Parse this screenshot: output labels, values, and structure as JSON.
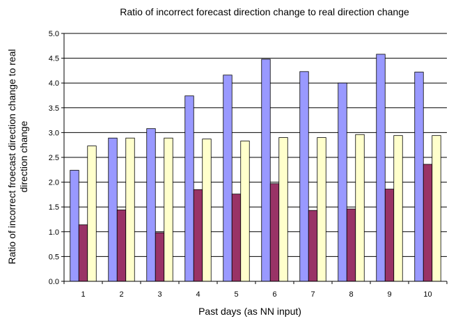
{
  "chart_data": {
    "type": "bar",
    "title": "Ratio of incorrect forecast direction change to real direction change",
    "xlabel": "Past days (as NN input)",
    "ylabel_lines": [
      "Ratio of incorrect froecast direction change to real",
      "direction change"
    ],
    "categories": [
      "1",
      "2",
      "3",
      "4",
      "5",
      "6",
      "7",
      "8",
      "9",
      "10"
    ],
    "ylim": [
      0,
      5
    ],
    "y_ticks": [
      "0.0",
      "0.5",
      "1.0",
      "1.5",
      "2.0",
      "2.5",
      "3.0",
      "3.5",
      "4.0",
      "4.5",
      "5.0"
    ],
    "grid": true,
    "legend": "none",
    "series": [
      {
        "values": [
          2.24,
          2.89,
          3.08,
          3.74,
          4.16,
          4.48,
          4.23,
          4.0,
          4.58,
          4.22
        ],
        "color": "#9999ff"
      },
      {
        "values": [
          1.14,
          1.44,
          0.98,
          1.85,
          1.76,
          1.97,
          1.43,
          1.46,
          1.86,
          2.36
        ],
        "color": "#993366"
      },
      {
        "values": [
          2.73,
          2.89,
          2.89,
          2.87,
          2.83,
          2.9,
          2.9,
          2.96,
          2.94,
          2.94
        ],
        "color": "#ffffcc"
      }
    ]
  }
}
